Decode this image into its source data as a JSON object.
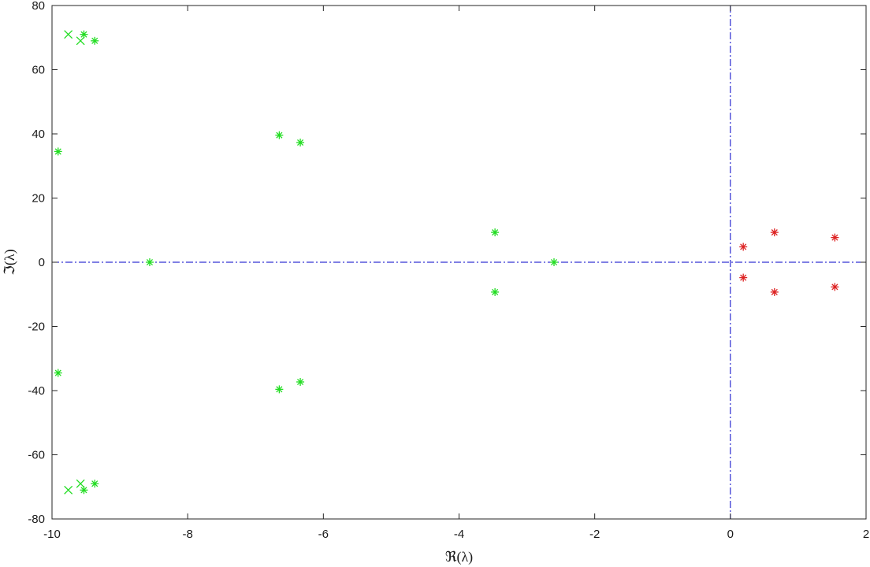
{
  "chart_data": {
    "type": "scatter",
    "title": "",
    "xlabel": "ℜ(λ)",
    "ylabel": "ℑ(λ)",
    "xlim": [
      -10,
      2
    ],
    "ylim": [
      -80,
      80
    ],
    "xticks": [
      -10,
      -8,
      -6,
      -4,
      -2,
      0,
      2
    ],
    "yticks": [
      -80,
      -60,
      -40,
      -20,
      0,
      20,
      40,
      60,
      80
    ],
    "xtick_labels": [
      "-10",
      "-8",
      "-6",
      "-4",
      "-2",
      "0",
      "2"
    ],
    "ytick_labels": [
      "-80",
      "-60",
      "-40",
      "-20",
      "0",
      "20",
      "40",
      "60",
      "80"
    ],
    "grid": false,
    "reference_lines": [
      {
        "orientation": "horizontal",
        "value": 0,
        "style": "dash-dot",
        "color": "#0000c8"
      },
      {
        "orientation": "vertical",
        "value": 0,
        "style": "dash-dot",
        "color": "#0000c8"
      }
    ],
    "series": [
      {
        "marker": "x",
        "color": "#22dd22",
        "points": [
          {
            "x": -9.76,
            "y": 71.0
          },
          {
            "x": -9.58,
            "y": 69.0
          },
          {
            "x": -9.76,
            "y": -71.0
          },
          {
            "x": -9.58,
            "y": -69.0
          }
        ]
      },
      {
        "marker": "asterisk",
        "color": "#22dd22",
        "points": [
          {
            "x": -9.53,
            "y": 71.0
          },
          {
            "x": -9.37,
            "y": 69.0
          },
          {
            "x": -9.53,
            "y": -71.0
          },
          {
            "x": -9.37,
            "y": -69.0
          },
          {
            "x": -9.91,
            "y": 34.5
          },
          {
            "x": -9.91,
            "y": -34.5
          },
          {
            "x": -6.65,
            "y": 39.6
          },
          {
            "x": -6.65,
            "y": -39.6
          },
          {
            "x": -6.34,
            "y": 37.3
          },
          {
            "x": -6.34,
            "y": -37.3
          },
          {
            "x": -8.56,
            "y": 0
          },
          {
            "x": -3.47,
            "y": 9.3
          },
          {
            "x": -3.47,
            "y": -9.3
          },
          {
            "x": -2.6,
            "y": 0
          }
        ]
      },
      {
        "marker": "asterisk",
        "color": "#dd2222",
        "points": [
          {
            "x": 0.19,
            "y": 4.8
          },
          {
            "x": 0.19,
            "y": -4.8
          },
          {
            "x": 0.65,
            "y": 9.3
          },
          {
            "x": 0.65,
            "y": -9.3
          },
          {
            "x": 1.54,
            "y": 7.7
          },
          {
            "x": 1.54,
            "y": -7.7
          }
        ]
      }
    ]
  }
}
